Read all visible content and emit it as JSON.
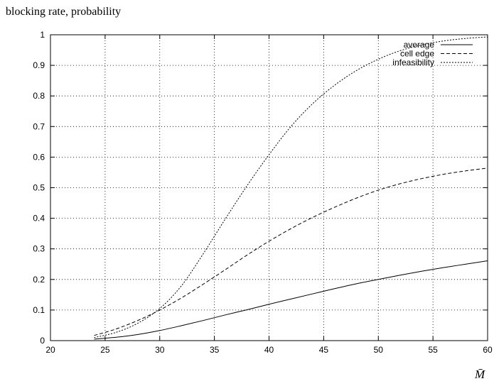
{
  "chart_data": {
    "type": "line",
    "title": "",
    "ylabel": "blocking rate, probability",
    "xlabel": "M̄",
    "xlim": [
      20,
      60
    ],
    "ylim": [
      0,
      1
    ],
    "x_ticks": [
      20,
      25,
      30,
      35,
      40,
      45,
      50,
      55,
      60
    ],
    "y_ticks": [
      0,
      0.1,
      0.2,
      0.3,
      0.4,
      0.5,
      0.6,
      0.7,
      0.8,
      0.9,
      1
    ],
    "grid": true,
    "legend_position": "top-right",
    "series": [
      {
        "name": "average",
        "style": "solid",
        "x": [
          24,
          26,
          28,
          30,
          32,
          34,
          36,
          38,
          40,
          42,
          44,
          46,
          48,
          50,
          52,
          54,
          56,
          58,
          60
        ],
        "values": [
          0.005,
          0.011,
          0.02,
          0.033,
          0.049,
          0.066,
          0.084,
          0.101,
          0.119,
          0.136,
          0.153,
          0.17,
          0.186,
          0.2,
          0.214,
          0.227,
          0.239,
          0.25,
          0.261
        ]
      },
      {
        "name": "cell edge",
        "style": "dashed",
        "x": [
          24,
          26,
          28,
          30,
          32,
          34,
          36,
          38,
          40,
          42,
          44,
          46,
          48,
          50,
          52,
          54,
          56,
          58,
          60
        ],
        "values": [
          0.017,
          0.038,
          0.066,
          0.1,
          0.14,
          0.185,
          0.232,
          0.28,
          0.325,
          0.366,
          0.403,
          0.436,
          0.466,
          0.492,
          0.513,
          0.53,
          0.544,
          0.555,
          0.564
        ]
      },
      {
        "name": "infeasibility",
        "style": "dotted",
        "x": [
          24,
          26,
          28,
          30,
          32,
          34,
          36,
          38,
          40,
          42,
          44,
          46,
          48,
          50,
          52,
          54,
          56,
          58,
          60
        ],
        "values": [
          0.01,
          0.027,
          0.057,
          0.105,
          0.18,
          0.285,
          0.398,
          0.507,
          0.608,
          0.7,
          0.775,
          0.835,
          0.883,
          0.92,
          0.948,
          0.967,
          0.98,
          0.988,
          0.993
        ]
      }
    ]
  }
}
